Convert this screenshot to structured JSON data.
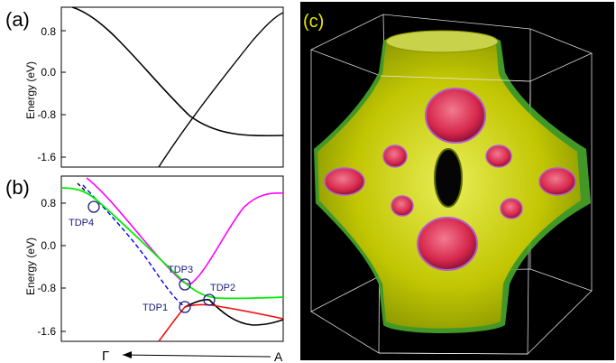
{
  "panels": {
    "a": {
      "label": "(a)",
      "ylabel": "Energy (eV)",
      "yticks": [
        "0.8",
        "0.0",
        "-0.8",
        "-1.6"
      ]
    },
    "b": {
      "label": "(b)",
      "ylabel": "Energy (eV)",
      "yticks": [
        "0.8",
        "0.0",
        "-0.8",
        "-1.6"
      ],
      "points": [
        "TDP1",
        "TDP2",
        "TDP3",
        "TDP4"
      ],
      "gamma": "Γ",
      "a_label": "A"
    },
    "c": {
      "label": "(c)"
    }
  },
  "colors": {
    "black": "#000000",
    "magenta": "#ff00ff",
    "green": "#00ee00",
    "red": "#ee1111",
    "blue_dash": "#0000ff",
    "tdp_circle": "#1a1a80",
    "tdp_text": "#1a1a80",
    "fermi_yellow": "#d4d400",
    "fermi_green": "#49a82a",
    "fermi_pink": "#e0405c",
    "panel_c_label": "#e8e800"
  },
  "chart_data": [
    {
      "type": "line",
      "title": "(a)",
      "ylabel": "Energy (eV)",
      "ylim": [
        -1.75,
        1.05
      ],
      "yticks": [
        0.8,
        0.0,
        -0.8,
        -1.6
      ],
      "series": [
        {
          "color": "#000000",
          "x": [
            0.0,
            0.2,
            0.4,
            0.55,
            0.7,
            0.85,
            1.0
          ],
          "y": [
            1.05,
            0.55,
            -0.3,
            -0.85,
            -1.1,
            -1.2,
            -1.2
          ]
        },
        {
          "color": "#000000",
          "x": [
            0.45,
            0.6,
            0.75,
            0.9,
            1.0
          ],
          "y": [
            -1.75,
            -0.85,
            0.1,
            0.85,
            1.05
          ]
        }
      ]
    },
    {
      "type": "line",
      "title": "(b)",
      "ylabel": "Energy (eV)",
      "ylim": [
        -1.75,
        1.05
      ],
      "yticks": [
        0.8,
        0.0,
        -0.8,
        -1.6
      ],
      "xlabel_left": "Γ",
      "xlabel_right": "A",
      "series": [
        {
          "color": "#ff00ff",
          "x": [
            0.2,
            0.4,
            0.55,
            0.7,
            0.85,
            1.0
          ],
          "y": [
            1.05,
            0.05,
            -0.75,
            -0.35,
            0.6,
            0.9
          ]
        },
        {
          "color": "#00ee00",
          "x": [
            0.0,
            0.2,
            0.4,
            0.55,
            0.7,
            0.85,
            1.0
          ],
          "y": [
            1.05,
            0.75,
            0.0,
            -0.72,
            -0.98,
            -1.0,
            -0.98
          ]
        },
        {
          "color": "#000000",
          "x": [
            0.55,
            0.65,
            0.8,
            0.9,
            1.0
          ],
          "y": [
            -1.1,
            -0.98,
            -1.35,
            -1.43,
            -1.35
          ]
        },
        {
          "color": "#ee1111",
          "x": [
            0.45,
            0.52,
            0.55,
            0.65,
            0.8,
            1.0
          ],
          "y": [
            -1.75,
            -1.3,
            -1.1,
            -1.1,
            -1.2,
            -1.35
          ]
        },
        {
          "color": "#0000ff",
          "style": "dashed",
          "x": [
            0.03,
            0.2,
            0.35,
            0.55
          ],
          "y": [
            1.05,
            0.5,
            -0.35,
            -1.1
          ]
        }
      ],
      "annotations": [
        {
          "label": "TDP1",
          "x": 0.55,
          "y": -1.1
        },
        {
          "label": "TDP2",
          "x": 0.65,
          "y": -0.98
        },
        {
          "label": "TDP3",
          "x": 0.55,
          "y": -0.72
        },
        {
          "label": "TDP4",
          "x": 0.05,
          "y": 0.72
        }
      ]
    }
  ]
}
